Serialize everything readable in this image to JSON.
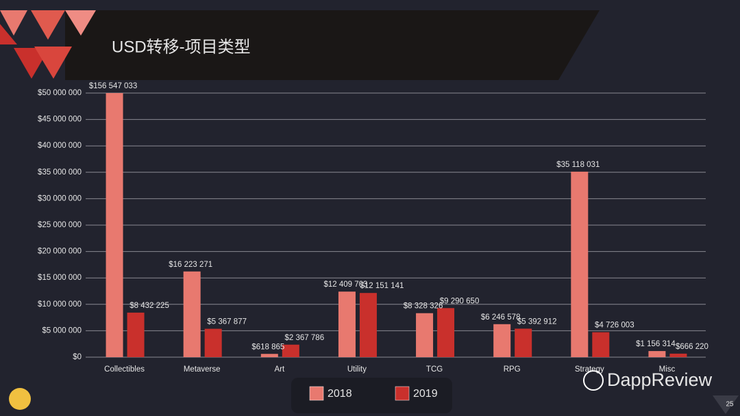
{
  "chart_data": {
    "type": "bar",
    "title": "USD转移-项目类型",
    "categories": [
      "Collectibles",
      "Metaverse",
      "Art",
      "Utility",
      "TCG",
      "RPG",
      "Strategy",
      "Misc"
    ],
    "series": [
      {
        "name": "2018",
        "color": "#e8796f",
        "values": [
          156547033,
          16223271,
          618865,
          12409703,
          8328326,
          6246578,
          35118031,
          1156314
        ],
        "value_labels": [
          "$156 547 033",
          "$16 223 271",
          "$618 865",
          "$12 409 703",
          "$8 328 326",
          "$6 246 578",
          "$35 118 031",
          "$1 156 314"
        ]
      },
      {
        "name": "2019",
        "color": "#c9302c",
        "values": [
          8432225,
          5367877,
          2367786,
          12151141,
          9290650,
          5392912,
          4726003,
          666220
        ],
        "value_labels": [
          "$8 432 225",
          "$5 367 877",
          "$2 367 786",
          "$12 151 141",
          "$9 290 650",
          "$5 392 912",
          "$4 726 003",
          "$666 220"
        ]
      }
    ],
    "ylim": [
      0,
      50000000
    ],
    "yticks": [
      {
        "value": 0,
        "label": "$0"
      },
      {
        "value": 5000000,
        "label": "$5 000 000"
      },
      {
        "value": 10000000,
        "label": "$10 000 000"
      },
      {
        "value": 15000000,
        "label": "$15 000 000"
      },
      {
        "value": 20000000,
        "label": "$20 000 000"
      },
      {
        "value": 25000000,
        "label": "$25 000 000"
      },
      {
        "value": 30000000,
        "label": "$30 000 000"
      },
      {
        "value": 35000000,
        "label": "$35 000 000"
      },
      {
        "value": 40000000,
        "label": "$40 000 000"
      },
      {
        "value": 45000000,
        "label": "$45 000 000"
      },
      {
        "value": 50000000,
        "label": "$50 000 000"
      }
    ],
    "grid": true,
    "legend": "bottom"
  },
  "watermark": "DappReview",
  "page_number": "25"
}
